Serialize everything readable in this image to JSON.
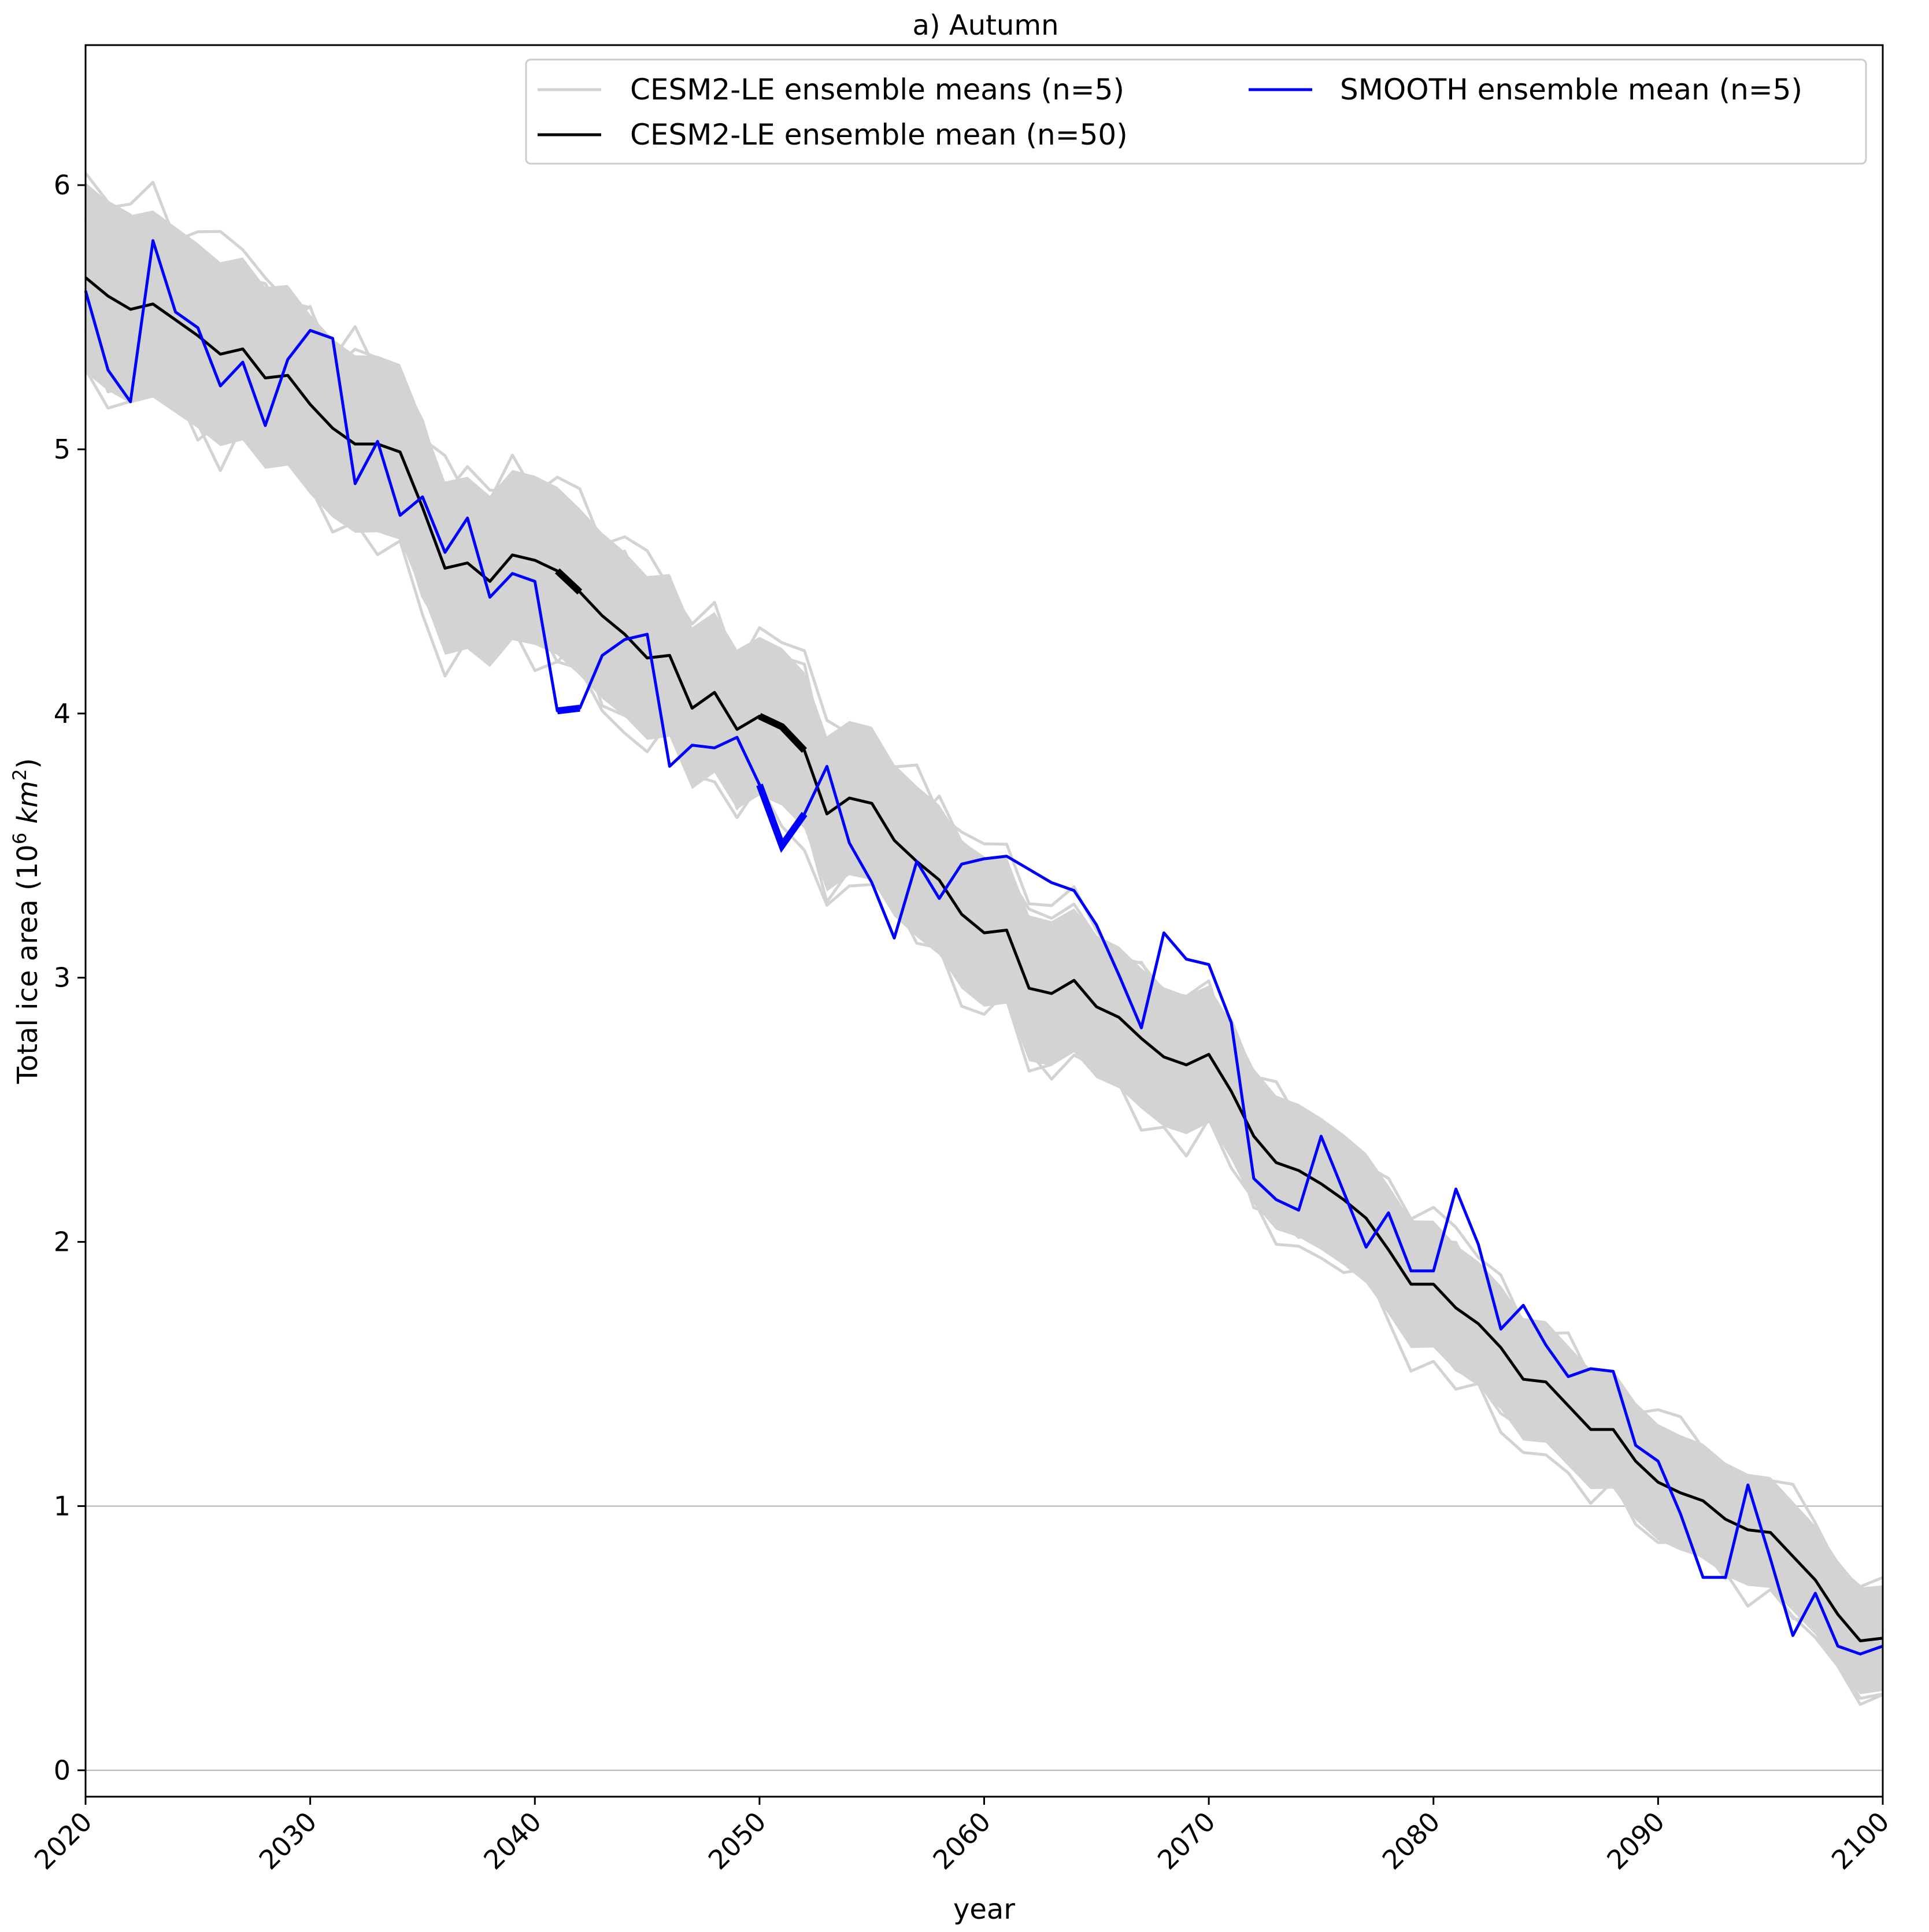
{
  "chart_data": {
    "type": "line",
    "title": "a) Autumn",
    "xlabel": "year",
    "ylabel": {
      "main": "Total ice area (10",
      "sup1": "6",
      "unit": " km",
      "sup2": "2",
      "close": ")"
    },
    "xlim": [
      2020,
      2100
    ],
    "ylim": [
      -0.1,
      6.53
    ],
    "xticks": [
      2020,
      2030,
      2040,
      2050,
      2060,
      2070,
      2080,
      2090,
      2100
    ],
    "yticks": [
      0,
      1,
      2,
      3,
      4,
      5,
      6
    ],
    "reference_lines": [
      0,
      1
    ],
    "legend": {
      "position": "top-right",
      "columns": 2
    },
    "colors": {
      "ensemble_members": "#d3d3d3",
      "ensemble_mean_50": "#000000",
      "smooth_mean": "#0000ff",
      "reference": "#b0b0b0"
    },
    "series": [
      {
        "name": "CESM2-LE ensemble means (n=5)",
        "kind": "spread",
        "note_count": 10,
        "center_from": "CESM2-LE ensemble mean (n=50)",
        "halfwidth_start": 0.45,
        "halfwidth_end": 0.25
      },
      {
        "name": "CESM2-LE ensemble mean (n=50)",
        "x": [
          2020,
          2021,
          2022,
          2023,
          2024,
          2025,
          2026,
          2027,
          2028,
          2029,
          2030,
          2031,
          2032,
          2033,
          2034,
          2035,
          2036,
          2037,
          2038,
          2039,
          2040,
          2041,
          2042,
          2043,
          2044,
          2045,
          2046,
          2047,
          2048,
          2049,
          2050,
          2051,
          2052,
          2053,
          2054,
          2055,
          2056,
          2057,
          2058,
          2059,
          2060,
          2061,
          2062,
          2063,
          2064,
          2065,
          2066,
          2067,
          2068,
          2069,
          2070,
          2071,
          2072,
          2073,
          2074,
          2075,
          2076,
          2077,
          2078,
          2079,
          2080,
          2081,
          2082,
          2083,
          2084,
          2085,
          2086,
          2087,
          2088,
          2089,
          2090,
          2091,
          2092,
          2093,
          2094,
          2095,
          2096,
          2097,
          2098,
          2099,
          2100
        ],
        "values": [
          5.65,
          5.58,
          5.53,
          5.55,
          5.49,
          5.43,
          5.36,
          5.38,
          5.27,
          5.28,
          5.17,
          5.08,
          5.02,
          5.02,
          4.99,
          4.78,
          4.55,
          4.57,
          4.5,
          4.6,
          4.58,
          4.54,
          4.46,
          4.37,
          4.3,
          4.21,
          4.22,
          4.02,
          4.08,
          3.94,
          3.99,
          3.95,
          3.86,
          3.62,
          3.68,
          3.66,
          3.52,
          3.44,
          3.37,
          3.24,
          3.17,
          3.18,
          2.96,
          2.94,
          2.99,
          2.89,
          2.85,
          2.77,
          2.7,
          2.67,
          2.71,
          2.57,
          2.4,
          2.3,
          2.27,
          2.22,
          2.16,
          2.09,
          1.97,
          1.84,
          1.84,
          1.75,
          1.69,
          1.6,
          1.48,
          1.47,
          1.38,
          1.29,
          1.29,
          1.17,
          1.09,
          1.05,
          1.02,
          0.95,
          0.91,
          0.9,
          0.81,
          0.72,
          0.59,
          0.49,
          0.5
        ]
      },
      {
        "name": "SMOOTH ensemble mean (n=5)",
        "x": [
          2020,
          2021,
          2022,
          2023,
          2024,
          2025,
          2026,
          2027,
          2028,
          2029,
          2030,
          2031,
          2032,
          2033,
          2034,
          2035,
          2036,
          2037,
          2038,
          2039,
          2040,
          2041,
          2042,
          2043,
          2044,
          2045,
          2046,
          2047,
          2048,
          2049,
          2050,
          2051,
          2052,
          2053,
          2054,
          2055,
          2056,
          2057,
          2058,
          2059,
          2060,
          2061,
          2062,
          2063,
          2064,
          2065,
          2066,
          2067,
          2068,
          2069,
          2070,
          2071,
          2072,
          2073,
          2074,
          2075,
          2076,
          2077,
          2078,
          2079,
          2080,
          2081,
          2082,
          2083,
          2084,
          2085,
          2086,
          2087,
          2088,
          2089,
          2090,
          2091,
          2092,
          2093,
          2094,
          2095,
          2096,
          2097,
          2098,
          2099,
          2100
        ],
        "values": [
          5.6,
          5.3,
          5.18,
          5.79,
          5.52,
          5.46,
          5.24,
          5.33,
          5.09,
          5.34,
          5.45,
          5.42,
          4.87,
          5.03,
          4.75,
          4.82,
          4.61,
          4.74,
          4.44,
          4.53,
          4.5,
          4.01,
          4.02,
          4.22,
          4.28,
          4.3,
          3.8,
          3.88,
          3.87,
          3.91,
          3.73,
          3.5,
          3.62,
          3.8,
          3.51,
          3.36,
          3.15,
          3.44,
          3.3,
          3.43,
          3.45,
          3.46,
          3.41,
          3.36,
          3.33,
          3.2,
          3.01,
          2.81,
          3.17,
          3.07,
          3.05,
          2.83,
          2.24,
          2.16,
          2.12,
          2.4,
          2.19,
          1.98,
          2.11,
          1.89,
          1.89,
          2.2,
          1.99,
          1.67,
          1.76,
          1.61,
          1.49,
          1.52,
          1.51,
          1.23,
          1.17,
          0.97,
          0.73,
          0.73,
          1.08,
          0.8,
          0.51,
          0.67,
          0.47,
          0.44,
          0.47
        ]
      }
    ],
    "highlighted_segments": [
      {
        "series": "CESM2-LE ensemble mean (n=50)",
        "from": 2041,
        "to": 2042
      },
      {
        "series": "CESM2-LE ensemble mean (n=50)",
        "from": 2050,
        "to": 2052
      },
      {
        "series": "SMOOTH ensemble mean (n=5)",
        "from": 2041,
        "to": 2042
      },
      {
        "series": "SMOOTH ensemble mean (n=5)",
        "from": 2050,
        "to": 2052
      }
    ]
  }
}
